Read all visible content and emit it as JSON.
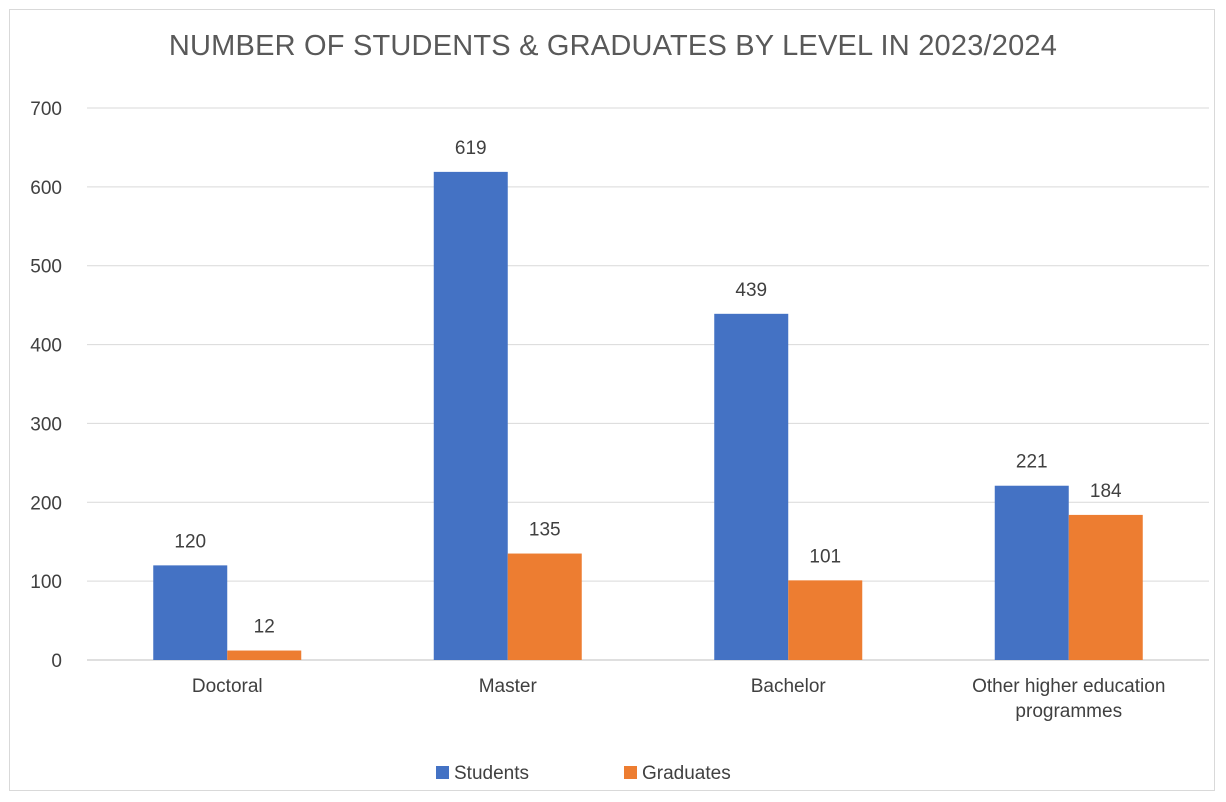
{
  "chart_data": {
    "type": "bar",
    "title": "NUMBER OF STUDENTS & GRADUATES BY LEVEL IN 2023/2024",
    "categories": [
      [
        "Doctoral"
      ],
      [
        "Master"
      ],
      [
        "Bachelor"
      ],
      [
        "Other higher education",
        "programmes"
      ]
    ],
    "series": [
      {
        "name": "Students",
        "color": "#4472c4",
        "values": [
          120,
          619,
          439,
          221
        ]
      },
      {
        "name": "Graduates",
        "color": "#ed7d31",
        "values": [
          12,
          135,
          101,
          184
        ]
      }
    ],
    "ylim": [
      0,
      700
    ],
    "yticks": [
      0,
      100,
      200,
      300,
      400,
      500,
      600,
      700
    ],
    "grid": true,
    "legend": "bottom"
  }
}
